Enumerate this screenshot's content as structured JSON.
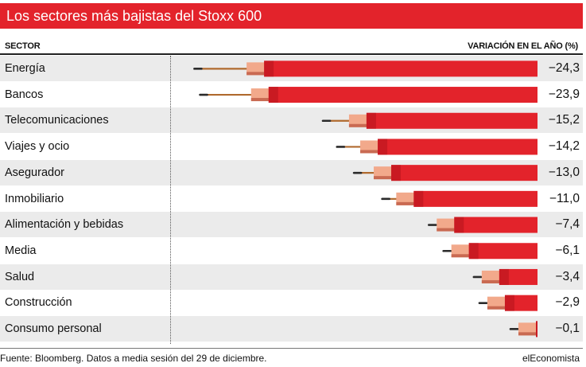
{
  "colors": {
    "accent": "#e3232b",
    "bar_dark": "#b5141b",
    "eraser": "#f2a98b",
    "eraser_dark": "#c96a52",
    "pencil_wood": "#b06a2e",
    "pencil_tip": "#2b2b2b",
    "row_shade": "#ebebeb"
  },
  "chart_data": {
    "type": "bar",
    "orientation": "horizontal",
    "title": "Los sectores más bajistas del Stoxx 600",
    "xlabel": "VARIACIÓN EN EL AÑO (%)",
    "ylabel": "SECTOR",
    "xlim": [
      -25,
      0
    ],
    "categories": [
      "Energía",
      "Bancos",
      "Telecomunicaciones",
      "Viajes y ocio",
      "Asegurador",
      "Inmobiliario",
      "Alimentación y bebidas",
      "Media",
      "Salud",
      "Construcción",
      "Consumo personal"
    ],
    "values": [
      -24.3,
      -23.9,
      -15.2,
      -14.2,
      -13.0,
      -11.0,
      -7.4,
      -6.1,
      -3.4,
      -2.9,
      -0.1
    ],
    "value_labels": [
      "−24,3",
      "−23,9",
      "−15,2",
      "−14,2",
      "−13,0",
      "−11,0",
      "−7,4",
      "−6,1",
      "−3,4",
      "−2,9",
      "−0,1"
    ]
  },
  "footer": {
    "source": "Fuente: Bloomberg. Datos a media sesión del 29 de diciembre.",
    "brand": "elEconomista"
  }
}
